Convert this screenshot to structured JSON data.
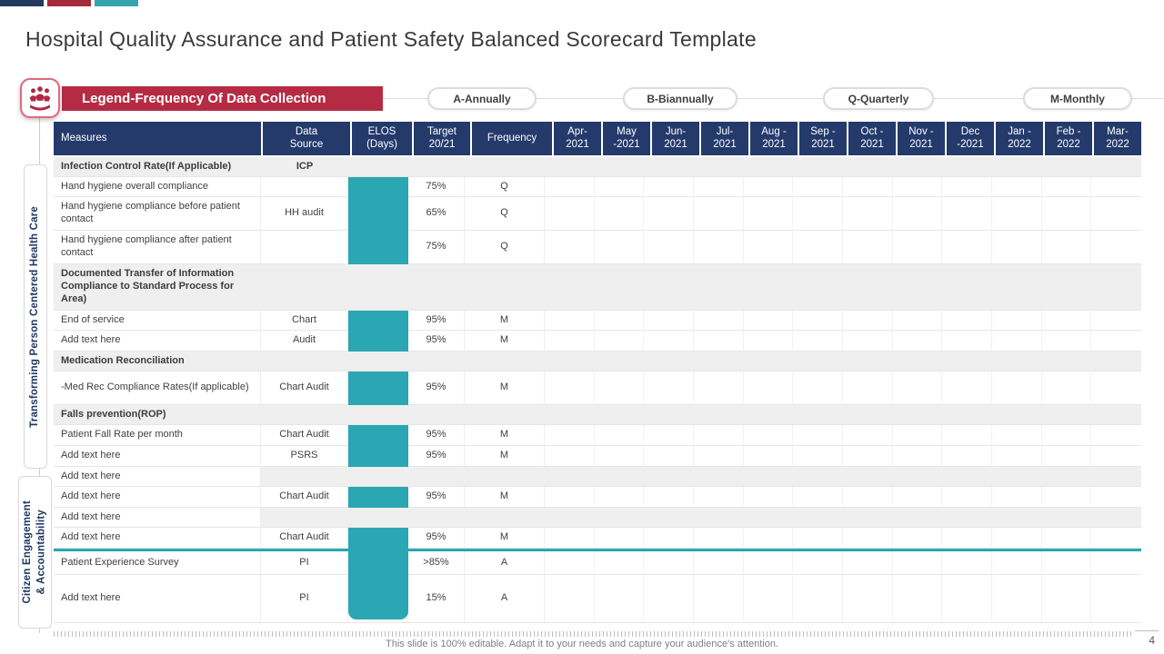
{
  "title": "Hospital Quality Assurance and Patient Safety Balanced Scorecard Template",
  "top_bars": {
    "colors": [
      "#243a5e",
      "#a42a3c",
      "#35a4ad"
    ]
  },
  "legend": {
    "banner": "Legend-Frequency Of Data Collection",
    "icon": "people-in-hand-icon",
    "pills": [
      "A-Annually",
      "B-Biannually",
      "Q-Quarterly",
      "M-Monthly"
    ]
  },
  "sidebar": {
    "sections": [
      {
        "label": "Transforming Person Centered Health Care"
      },
      {
        "label": "Citizen Engagement\n& Accountability"
      }
    ]
  },
  "colors": {
    "header_navy": "#243a6b",
    "banner_red": "#b52b43",
    "teal": "#2aa7b2",
    "section_gray": "#efefef",
    "sidebar_navy": "#1f3864"
  },
  "table": {
    "headers": [
      "Measures",
      "Data\nSource",
      "ELOS\n(Days)",
      "Target\n20/21",
      "Frequency"
    ],
    "months": [
      "Apr-\n2021",
      "May\n-2021",
      "Jun-\n2021",
      "Jul-\n2021",
      "Aug -\n2021",
      "Sep -\n2021",
      "Oct -\n2021",
      "Nov -\n2021",
      "Dec\n-2021",
      "Jan -\n2022",
      "Feb -\n2022",
      "Mar-\n2022"
    ],
    "rows": [
      {
        "style": "section",
        "measure": "Infection Control Rate(If Applicable)",
        "source": "ICP",
        "h": 22
      },
      {
        "style": "data",
        "measure": "Hand hygiene overall compliance",
        "source": "",
        "elos": true,
        "target": "75%",
        "freq": "Q",
        "h": 22
      },
      {
        "style": "data",
        "measure": "Hand hygiene compliance before patient contact",
        "source": "HH audit",
        "elos": true,
        "target": "65%",
        "freq": "Q",
        "h": 37
      },
      {
        "style": "data",
        "measure": "Hand hygiene compliance after patient contact",
        "source": "",
        "elos": true,
        "target": "75%",
        "freq": "Q",
        "h": 37
      },
      {
        "style": "section",
        "measure": "Documented Transfer of Information Compliance to  Standard Process for Area)",
        "source": "",
        "h": 51
      },
      {
        "style": "data",
        "measure": "End of service",
        "source": "Chart",
        "elos": true,
        "target": "95%",
        "freq": "M",
        "h": 22
      },
      {
        "style": "data",
        "measure": "Add text here",
        "source": "Audit",
        "elos": true,
        "target": "95%",
        "freq": "M",
        "h": 23
      },
      {
        "style": "section",
        "measure": "Medication Reconciliation",
        "source": "",
        "h": 22
      },
      {
        "style": "data",
        "measure": "-Med Rec Compliance Rates(If applicable)",
        "source": "Chart Audit",
        "elos": true,
        "target": "95%",
        "freq": "M",
        "h": 37
      },
      {
        "style": "section",
        "measure": "Falls  prevention(ROP)",
        "source": "",
        "h": 22
      },
      {
        "style": "data",
        "measure": "Patient Fall Rate per month",
        "source": "Chart Audit",
        "elos": true,
        "target": "95%",
        "freq": "M",
        "h": 23
      },
      {
        "style": "data",
        "measure": "Add text here",
        "source": "PSRS",
        "elos": true,
        "target": "95%",
        "freq": "M",
        "h": 23
      },
      {
        "style": "empty",
        "measure": "Add text here",
        "h": 22
      },
      {
        "style": "data",
        "measure": "Add text here",
        "source": "Chart Audit",
        "elos": true,
        "target": "95%",
        "freq": "M",
        "h": 23
      },
      {
        "style": "empty",
        "measure": "Add text here",
        "h": 22
      },
      {
        "style": "data",
        "measure": "Add text here",
        "source": "Chart Audit",
        "elos": true,
        "target": "95%",
        "freq": "M",
        "h": 23
      },
      {
        "style": "data",
        "measure": "Patient Experience Survey",
        "source": "PI",
        "elos": true,
        "target": ">85%",
        "freq": "A",
        "h": 26,
        "divider_before": true
      },
      {
        "style": "data",
        "measure": "Add text here",
        "source": "PI",
        "elos": true,
        "target": "15%",
        "freq": "A",
        "h": 53
      }
    ]
  },
  "footer": {
    "note": "This slide is 100% editable. Adapt it to your needs and capture your audience's attention.",
    "page": "4"
  }
}
